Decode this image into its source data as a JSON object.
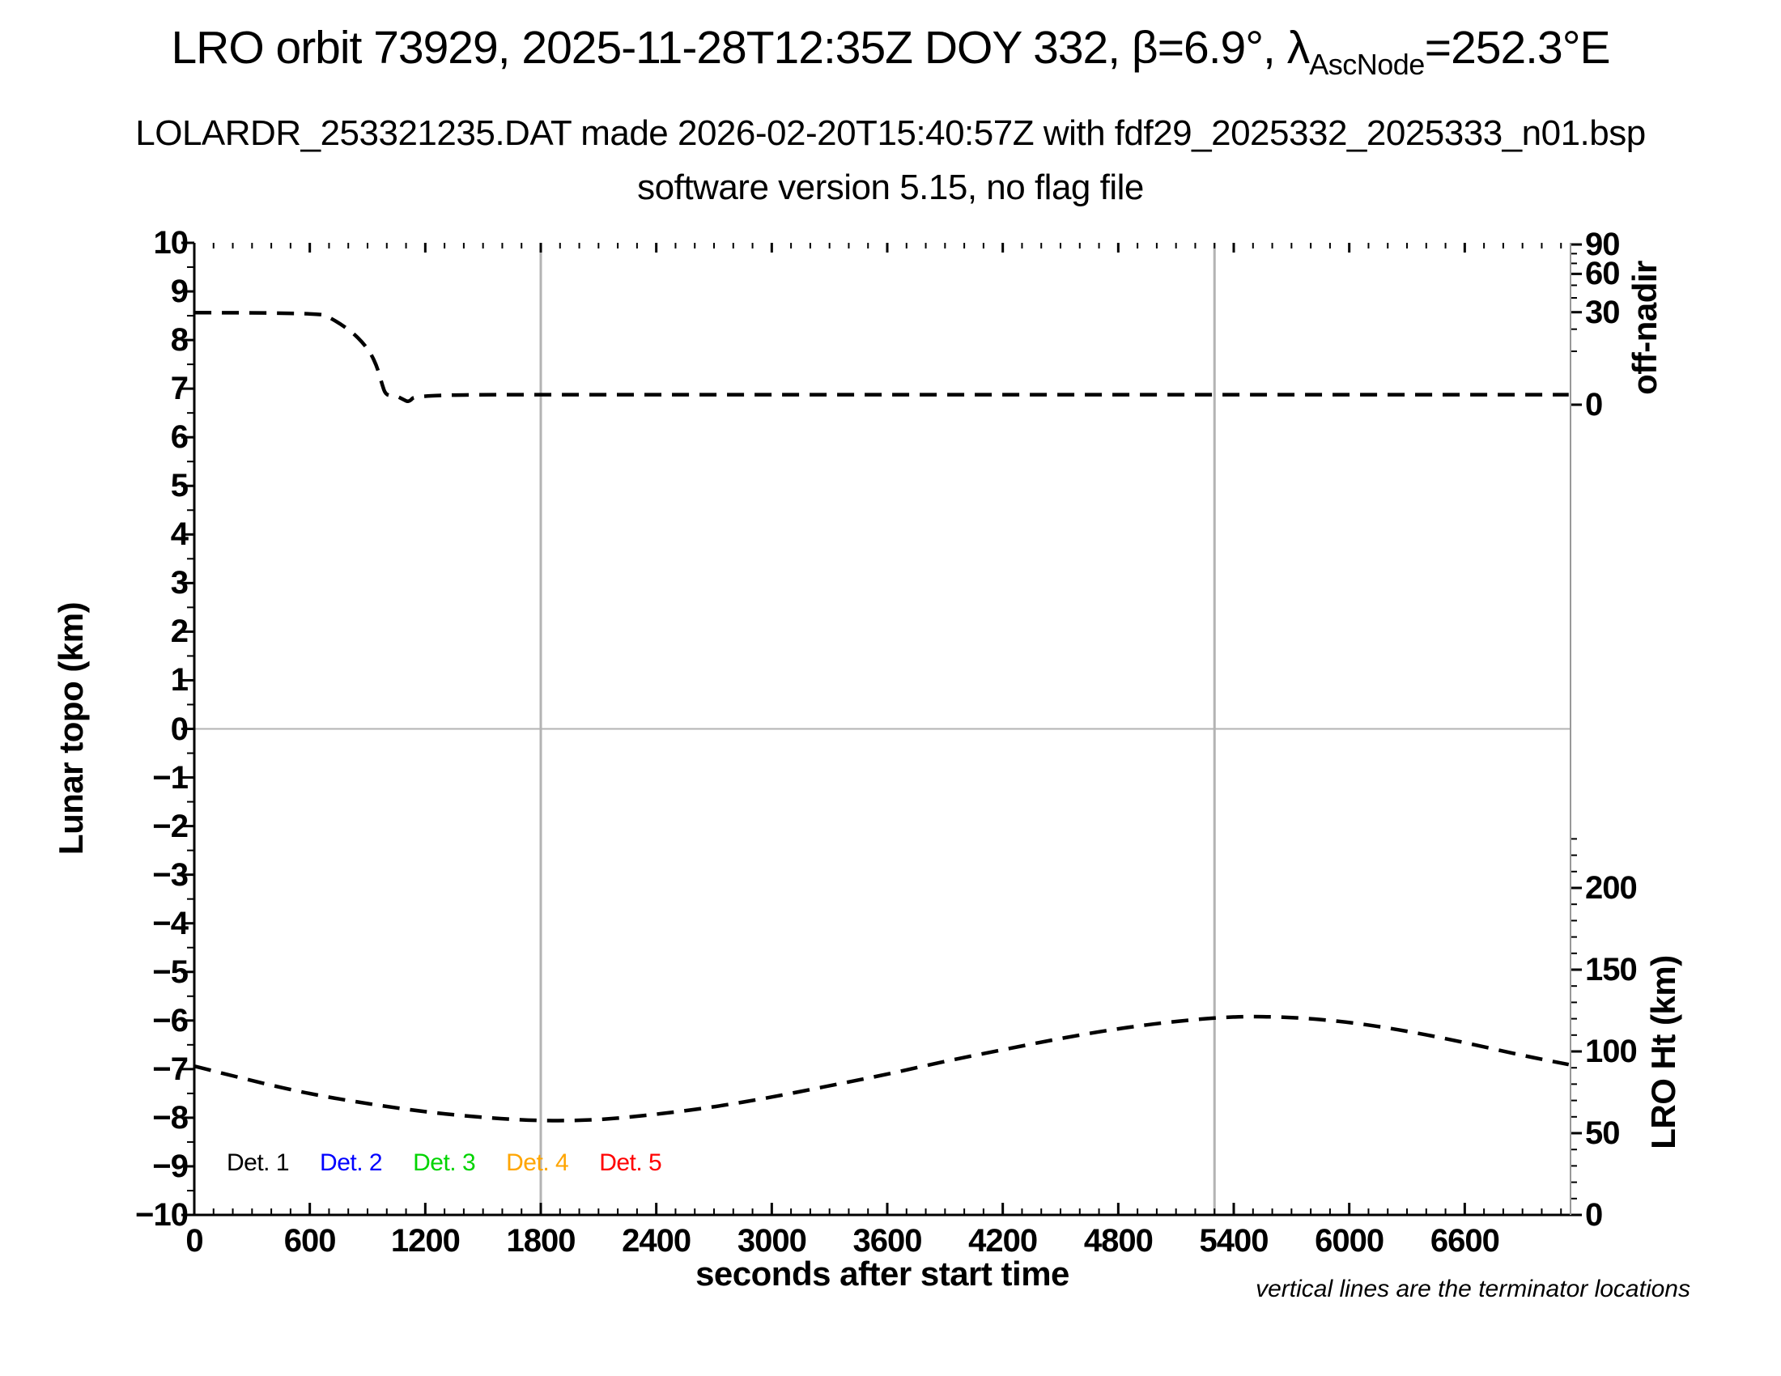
{
  "header": {
    "title_prefix": "LRO orbit 73929, 2025-11-28T12:35Z DOY 332, β=6.9°, λ",
    "title_sub": "AscNode",
    "title_suffix": "=252.3°E",
    "subtitle1": "LOLARDR_253321235.DAT made 2026-02-20T15:40:57Z with fdf29_2025332_2025333_n01.bsp",
    "subtitle2": "software version 5.15, no flag file"
  },
  "footnote": "vertical lines are the terminator locations",
  "legend": {
    "items": [
      {
        "label": "Det. 1",
        "color": "#000000"
      },
      {
        "label": "Det. 2",
        "color": "#0000ff"
      },
      {
        "label": "Det. 3",
        "color": "#00d400"
      },
      {
        "label": "Det. 4",
        "color": "#ffa500"
      },
      {
        "label": "Det. 5",
        "color": "#ff0000"
      }
    ]
  },
  "chart_data": {
    "type": "line",
    "title": "LRO orbit 73929, 2025-11-28T12:35Z DOY 332, β=6.9°, λAscNode=252.3°E",
    "x_axis": {
      "label": "seconds after start time",
      "min": 0,
      "max": 7140,
      "major_step": 600,
      "minor_step": 100,
      "tick_values": [
        0,
        600,
        1200,
        1800,
        2400,
        3000,
        3600,
        4200,
        4800,
        5400,
        6000,
        6600
      ],
      "tick_labels": [
        "0",
        "600",
        "1200",
        "1800",
        "2400",
        "3000",
        "3600",
        "4200",
        "4800",
        "5400",
        "6000",
        "6600"
      ]
    },
    "left_axis": {
      "label": "Lunar topo (km)",
      "min": -10,
      "max": 10,
      "major_step": 1,
      "minor_step": 0.5,
      "tick_values": [
        10,
        9,
        8,
        7,
        6,
        5,
        4,
        3,
        2,
        1,
        0,
        -1,
        -2,
        -3,
        -4,
        -5,
        -6,
        -7,
        -8,
        -9,
        -10
      ],
      "tick_labels": [
        "10",
        "9",
        "8",
        "7",
        "6",
        "5",
        "4",
        "3",
        "2",
        "1",
        "0",
        "−1",
        "−2",
        "−3",
        "−4",
        "−5",
        "−6",
        "−7",
        "−8",
        "−9",
        "−10"
      ]
    },
    "off_nadir_axis": {
      "label": "off-nadir",
      "unit": "deg",
      "scale": "sqrt",
      "min": 0,
      "max": 90,
      "tick_values": [
        90,
        60,
        30,
        0
      ],
      "tick_labels": [
        "90",
        "60",
        "30",
        "0"
      ],
      "minor_tick_values": [
        10,
        20,
        40,
        50,
        70,
        80
      ],
      "zero_deg_left_axis_equivalent": 6.67,
      "ninety_deg_left_axis_equivalent": 9.97
    },
    "lro_ht_axis": {
      "label": "LRO Ht (km)",
      "unit": "km",
      "min": 0,
      "max": 230,
      "minor_step": 10,
      "tick_values": [
        200,
        150,
        100,
        50,
        0
      ],
      "tick_labels": [
        "200",
        "150",
        "100",
        "50",
        "0"
      ],
      "zero_km_left_axis_equivalent": -10,
      "two_hundred_km_left_axis_equivalent": -3.27
    },
    "grid": {
      "zero_line_left_value": 0,
      "terminator_lines_t": [
        1800,
        5300
      ]
    },
    "series": [
      {
        "name": "spacecraft off-nadir angle",
        "axis": "off_nadir",
        "unit": "deg",
        "line_style": "dashed",
        "color": "#000000",
        "points": [
          [
            0,
            29.7
          ],
          [
            650,
            29.7
          ],
          [
            705,
            26.5
          ],
          [
            765,
            22.5
          ],
          [
            825,
            18
          ],
          [
            875,
            13.5
          ],
          [
            915,
            9.5
          ],
          [
            950,
            5
          ],
          [
            975,
            1.5
          ],
          [
            995,
            0.3
          ],
          [
            1045,
            0.3
          ],
          [
            1085,
            0.1
          ],
          [
            1115,
            0.02
          ],
          [
            1150,
            0.35
          ],
          [
            2000,
            0.35
          ],
          [
            3000,
            0.35
          ],
          [
            4000,
            0.35
          ],
          [
            5000,
            0.35
          ],
          [
            6000,
            0.35
          ],
          [
            7140,
            0.35
          ]
        ]
      },
      {
        "name": "LRO height above surface",
        "axis": "lro_ht",
        "unit": "km",
        "line_style": "dashed",
        "color": "#000000",
        "points": [
          [
            0,
            91
          ],
          [
            300,
            82
          ],
          [
            600,
            74
          ],
          [
            900,
            68
          ],
          [
            1200,
            63
          ],
          [
            1500,
            59.5
          ],
          [
            1800,
            57.5
          ],
          [
            2100,
            58
          ],
          [
            2400,
            61.5
          ],
          [
            2700,
            66
          ],
          [
            3000,
            72
          ],
          [
            3300,
            79
          ],
          [
            3600,
            86
          ],
          [
            3900,
            94
          ],
          [
            4200,
            101
          ],
          [
            4500,
            108
          ],
          [
            4800,
            114
          ],
          [
            5100,
            118.5
          ],
          [
            5400,
            121.5
          ],
          [
            5700,
            121
          ],
          [
            6000,
            118
          ],
          [
            6300,
            112.5
          ],
          [
            6600,
            105.5
          ],
          [
            6900,
            97.5
          ],
          [
            7140,
            92
          ]
        ]
      }
    ]
  }
}
